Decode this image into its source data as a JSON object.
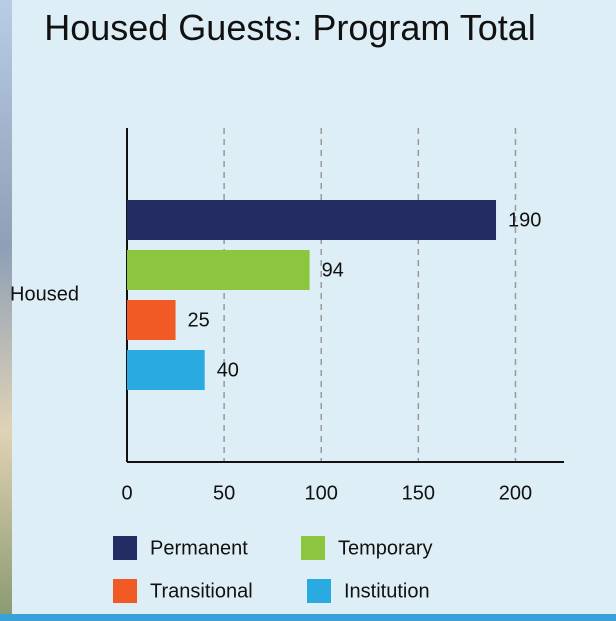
{
  "chart_data": {
    "type": "bar",
    "orientation": "horizontal",
    "title": "Housed Guests: Program Total",
    "categories": [
      "Housed"
    ],
    "series": [
      {
        "name": "Permanent",
        "color": "#232c63",
        "values": [
          190
        ]
      },
      {
        "name": "Temporary",
        "color": "#8cc63f",
        "values": [
          94
        ]
      },
      {
        "name": "Transitional",
        "color": "#f15a24",
        "values": [
          25
        ]
      },
      {
        "name": "Institution",
        "color": "#29abe2",
        "values": [
          40
        ]
      }
    ],
    "xlim": [
      0,
      225
    ],
    "xticks": [
      0,
      50,
      100,
      150,
      200
    ],
    "grid": true,
    "legend": "bottom"
  }
}
